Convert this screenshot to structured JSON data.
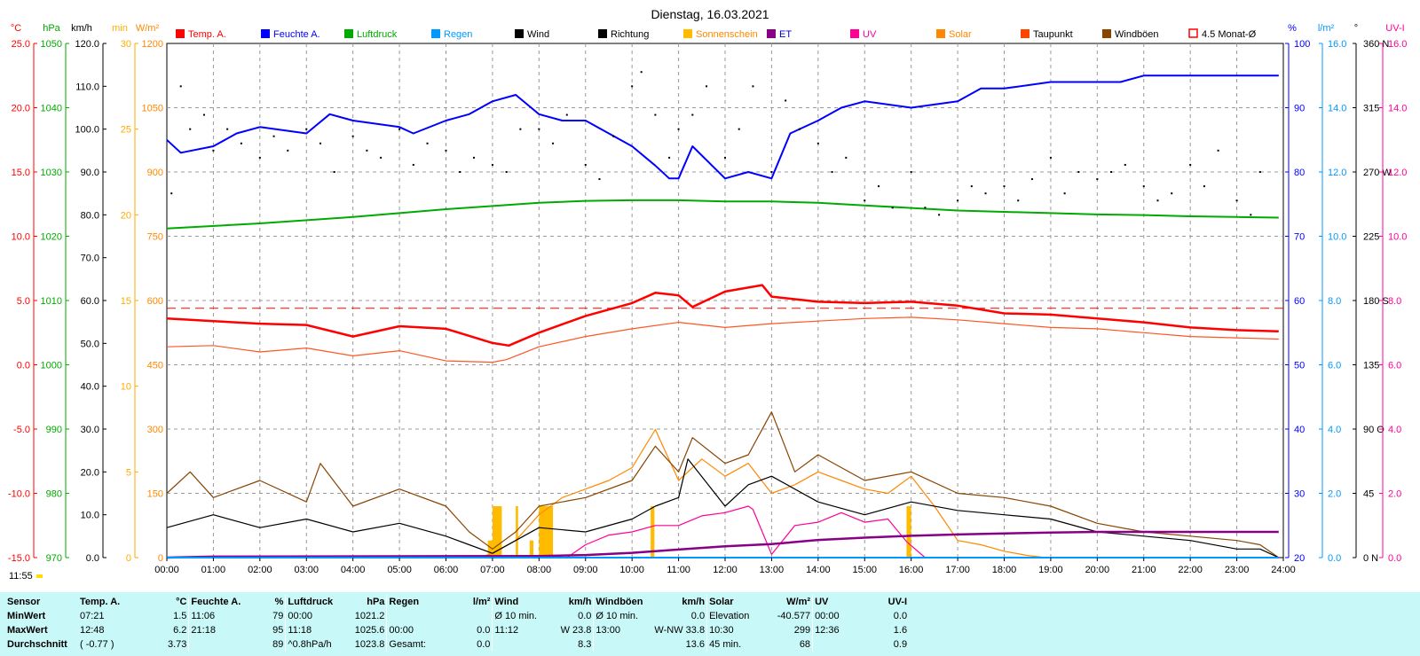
{
  "title": "Dienstag, 16.03.2021",
  "legend": [
    {
      "label": "Temp. A.",
      "color": "#ff0000"
    },
    {
      "label": "Feuchte A.",
      "color": "#0000ff"
    },
    {
      "label": "Luftdruck",
      "color": "#00aa00"
    },
    {
      "label": "Regen",
      "color": "#0099ff"
    },
    {
      "label": "Wind",
      "color": "#000000"
    },
    {
      "label": "Richtung",
      "color": "#000000"
    },
    {
      "label": "Sonnenschein",
      "color": "#ffbb00"
    },
    {
      "label": "ET",
      "color": "#880088"
    },
    {
      "label": "UV",
      "color": "#ff0099"
    },
    {
      "label": "Solar",
      "color": "#ff8800"
    },
    {
      "label": "Taupunkt",
      "color": "#ff4400"
    },
    {
      "label": "Windböen",
      "color": "#884400"
    },
    {
      "label": "4.5 Monat-Ø",
      "color": "#ff0000"
    }
  ],
  "axes_left": [
    {
      "unit": "°C",
      "color": "#ff0000",
      "ticks": [
        "25.0",
        "20.0",
        "15.0",
        "10.0",
        "5.0",
        "0.0",
        "-5.0",
        "-10.0",
        "-15.0"
      ]
    },
    {
      "unit": "hPa",
      "color": "#00aa00",
      "ticks": [
        "1050",
        "1040",
        "1030",
        "1020",
        "1010",
        "1000",
        "990",
        "980",
        "970"
      ]
    },
    {
      "unit": "km/h",
      "color": "#000000",
      "ticks": [
        "120.0",
        "110.0",
        "100.0",
        "90.0",
        "80.0",
        "70.0",
        "60.0",
        "50.0",
        "40.0",
        "30.0",
        "20.0",
        "10.0",
        "0.0"
      ]
    },
    {
      "unit": "min",
      "color": "#ffaa00",
      "ticks": [
        "30",
        "25",
        "20",
        "15",
        "10",
        "5",
        "0"
      ]
    },
    {
      "unit": "W/m²",
      "color": "#ff8800",
      "ticks": [
        "1200",
        "1050",
        "900",
        "750",
        "600",
        "450",
        "300",
        "150",
        "0"
      ]
    }
  ],
  "axes_right": [
    {
      "unit": "%",
      "color": "#0000ff",
      "ticks": [
        "100",
        "90",
        "80",
        "70",
        "60",
        "50",
        "40",
        "30",
        "20"
      ]
    },
    {
      "unit": "l/m²",
      "color": "#0099ff",
      "ticks": [
        "16.0",
        "14.0",
        "12.0",
        "10.0",
        "8.0",
        "6.0",
        "4.0",
        "2.0",
        "0.0"
      ]
    },
    {
      "unit": "°",
      "color": "#000000",
      "ticks": [
        "360 N",
        "315",
        "270 W",
        "225",
        "180 S",
        "135",
        "90 O",
        "45",
        "0 N"
      ]
    },
    {
      "unit": "UV-I",
      "color": "#ff0099",
      "ticks": [
        "16.0",
        "14.0",
        "12.0",
        "10.0",
        "8.0",
        "6.0",
        "4.0",
        "2.0",
        "0.0"
      ]
    }
  ],
  "chart_data": {
    "type": "line",
    "title": "Dienstag, 16.03.2021",
    "xlabel": "",
    "ylabel": "",
    "x_ticks": [
      "00:00",
      "01:00",
      "02:00",
      "03:00",
      "04:00",
      "05:00",
      "06:00",
      "07:00",
      "08:00",
      "09:00",
      "10:00",
      "11:00",
      "12:00",
      "13:00",
      "14:00",
      "15:00",
      "16:00",
      "17:00",
      "18:00",
      "19:00",
      "20:00",
      "21:00",
      "22:00",
      "23:00",
      "24:00"
    ],
    "grid": true,
    "legend_position": "top",
    "reference_line": {
      "name": "4.5 Monat-Ø",
      "value_C": 4.4
    },
    "series": [
      {
        "name": "Temp. A.",
        "unit": "°C",
        "x": [
          0,
          1,
          2,
          3,
          4,
          5,
          6,
          7,
          7.35,
          8,
          9,
          10,
          10.5,
          11,
          11.3,
          12,
          12.8,
          13,
          14,
          15,
          16,
          17,
          18,
          19,
          20,
          21,
          22,
          23,
          23.9
        ],
        "values": [
          3.6,
          3.4,
          3.2,
          3.1,
          2.2,
          3.0,
          2.8,
          1.7,
          1.5,
          2.5,
          3.8,
          4.8,
          5.6,
          5.4,
          4.5,
          5.7,
          6.2,
          5.3,
          4.9,
          4.8,
          4.9,
          4.6,
          4.0,
          3.9,
          3.6,
          3.3,
          2.9,
          2.7,
          2.6
        ]
      },
      {
        "name": "Taupunkt",
        "unit": "°C",
        "x": [
          0,
          1,
          2,
          3,
          4,
          5,
          6,
          7,
          7.3,
          8,
          9,
          10,
          11,
          12,
          13,
          14,
          15,
          16,
          17,
          18,
          19,
          20,
          21,
          22,
          23,
          23.9
        ],
        "values": [
          1.4,
          1.5,
          1.0,
          1.3,
          0.7,
          1.1,
          0.3,
          0.2,
          0.4,
          1.4,
          2.2,
          2.8,
          3.3,
          2.9,
          3.2,
          3.4,
          3.6,
          3.7,
          3.5,
          3.2,
          2.9,
          2.8,
          2.5,
          2.2,
          2.1,
          2.0
        ]
      },
      {
        "name": "Feuchte A.",
        "unit": "%",
        "x": [
          0,
          0.3,
          1,
          1.5,
          2,
          3,
          3.5,
          4,
          5,
          5.3,
          6,
          6.5,
          7,
          7.5,
          8,
          8.5,
          9,
          9.5,
          10,
          10.5,
          10.8,
          11,
          11.3,
          12,
          12.5,
          13,
          13.4,
          14,
          14.5,
          15,
          16,
          17,
          17.5,
          18,
          19,
          20,
          20.5,
          21,
          21.5,
          22,
          23,
          23.9
        ],
        "values": [
          85,
          83,
          84,
          86,
          87,
          86,
          89,
          88,
          87,
          86,
          88,
          89,
          91,
          92,
          89,
          88,
          88,
          86,
          84,
          81,
          79,
          79,
          84,
          79,
          80,
          79,
          86,
          88,
          90,
          91,
          90,
          91,
          93,
          93,
          94,
          94,
          94,
          95,
          95,
          95,
          95,
          95
        ]
      },
      {
        "name": "Luftdruck",
        "unit": "hPa",
        "x": [
          0,
          2,
          4,
          6,
          8,
          9,
          10,
          11,
          12,
          13,
          14,
          15,
          16,
          17,
          18,
          19,
          20,
          21,
          22,
          23,
          23.9
        ],
        "values": [
          1021.2,
          1022.0,
          1023.0,
          1024.2,
          1025.2,
          1025.5,
          1025.6,
          1025.6,
          1025.4,
          1025.4,
          1025.2,
          1024.8,
          1024.4,
          1024.0,
          1023.8,
          1023.6,
          1023.4,
          1023.3,
          1023.1,
          1023.0,
          1022.9
        ]
      },
      {
        "name": "Wind",
        "unit": "km/h",
        "x": [
          0,
          1,
          2,
          3,
          4,
          5,
          6,
          6.5,
          7,
          7.5,
          8,
          9,
          10,
          10.5,
          11,
          11.2,
          12,
          12.5,
          13,
          14,
          15,
          16,
          17,
          18,
          19,
          20,
          21,
          22,
          23,
          23.5,
          23.9
        ],
        "values": [
          7,
          10,
          7,
          9,
          6,
          8,
          5,
          3,
          1,
          4,
          7,
          6,
          9,
          12,
          14,
          23,
          12,
          17,
          19,
          13,
          10,
          13,
          11,
          10,
          9,
          6,
          5,
          4,
          2,
          2,
          0
        ]
      },
      {
        "name": "Windböen",
        "unit": "km/h",
        "x": [
          0,
          0.5,
          1,
          2,
          3,
          3.3,
          4,
          5,
          6,
          6.5,
          7,
          7.5,
          8,
          9,
          10,
          10.5,
          11,
          11.3,
          12,
          12.5,
          13,
          13.5,
          14,
          15,
          16,
          17,
          18,
          19,
          20,
          21,
          22,
          23,
          23.5,
          23.9
        ],
        "values": [
          15,
          20,
          14,
          18,
          13,
          22,
          12,
          16,
          12,
          6,
          2,
          6,
          12,
          14,
          18,
          26,
          20,
          28,
          22,
          24,
          34,
          20,
          24,
          18,
          20,
          15,
          14,
          12,
          8,
          6,
          5,
          4,
          3,
          0
        ]
      },
      {
        "name": "Solar",
        "unit": "W/m²",
        "x": [
          6.7,
          7,
          7.5,
          8,
          8.5,
          9,
          9.5,
          10,
          10.5,
          11,
          11.5,
          12,
          12.5,
          13,
          13.5,
          14,
          14.5,
          15,
          15.5,
          16,
          16.5,
          17,
          17.5,
          18,
          18.5,
          18.9
        ],
        "values": [
          0,
          10,
          40,
          100,
          140,
          160,
          180,
          210,
          299,
          180,
          230,
          190,
          220,
          150,
          170,
          200,
          180,
          160,
          150,
          190,
          120,
          40,
          30,
          15,
          5,
          0
        ]
      },
      {
        "name": "UV",
        "unit": "UV-I",
        "x": [
          8.6,
          9,
          9.5,
          10,
          10.5,
          11,
          11.5,
          12,
          12.5,
          12.6,
          13,
          13.5,
          14,
          14.5,
          15,
          15.5,
          15.9,
          16.3
        ],
        "values": [
          0,
          0.4,
          0.7,
          0.8,
          1.0,
          1.0,
          1.3,
          1.4,
          1.6,
          1.5,
          0.1,
          1.0,
          1.1,
          1.4,
          1.1,
          1.2,
          0.5,
          0
        ]
      },
      {
        "name": "ET",
        "unit": "l/m²",
        "x": [
          0,
          1,
          8,
          9,
          10,
          11,
          12,
          13,
          14,
          15,
          16,
          17,
          18,
          19,
          20,
          21,
          22,
          23,
          23.9
        ],
        "values": [
          0,
          0.03,
          0.05,
          0.08,
          0.15,
          0.25,
          0.35,
          0.42,
          0.55,
          0.62,
          0.68,
          0.72,
          0.75,
          0.78,
          0.8,
          0.8,
          0.8,
          0.8,
          0.8
        ]
      },
      {
        "name": "Regen",
        "unit": "l/m²",
        "x": [
          0,
          23.9
        ],
        "values": [
          0.0,
          0.0
        ]
      },
      {
        "name": "Sonnenschein",
        "unit": "min",
        "type": "bar",
        "bars": [
          {
            "x": 6.9,
            "w": 0.1,
            "v": 1
          },
          {
            "x": 7.0,
            "w": 0.2,
            "v": 3
          },
          {
            "x": 7.5,
            "w": 0.05,
            "v": 3
          },
          {
            "x": 7.8,
            "w": 0.08,
            "v": 1
          },
          {
            "x": 8.0,
            "w": 0.3,
            "v": 3
          },
          {
            "x": 10.4,
            "w": 0.08,
            "v": 3
          },
          {
            "x": 15.9,
            "w": 0.1,
            "v": 3
          }
        ]
      },
      {
        "name": "Richtung",
        "unit": "°",
        "type": "scatter",
        "x": [
          0.1,
          0.3,
          0.5,
          0.8,
          1.0,
          1.3,
          1.6,
          2.0,
          2.3,
          2.6,
          3.0,
          3.3,
          3.6,
          4.0,
          4.3,
          4.6,
          5.0,
          5.3,
          5.6,
          6.0,
          6.3,
          6.6,
          7.0,
          7.3,
          7.6,
          8.0,
          8.3,
          8.6,
          9.0,
          9.3,
          9.6,
          10.0,
          10.2,
          10.5,
          10.8,
          11.0,
          11.3,
          11.6,
          12.0,
          12.3,
          12.6,
          13.0,
          13.3,
          13.6,
          14.0,
          14.3,
          14.6,
          15.0,
          15.3,
          15.6,
          16.0,
          16.3,
          16.6,
          17.0,
          17.3,
          17.6,
          18.0,
          18.3,
          18.6,
          19.0,
          19.3,
          19.6,
          20.0,
          20.3,
          20.6,
          21.0,
          21.3,
          21.6,
          22.0,
          22.3,
          22.6,
          23.0,
          23.3,
          23.5
        ],
        "values": [
          255,
          330,
          300,
          310,
          285,
          300,
          290,
          280,
          295,
          285,
          300,
          290,
          270,
          295,
          285,
          280,
          300,
          275,
          290,
          285,
          270,
          280,
          275,
          270,
          300,
          300,
          290,
          310,
          275,
          265,
          295,
          330,
          340,
          310,
          280,
          300,
          310,
          330,
          280,
          300,
          330,
          270,
          320,
          300,
          290,
          270,
          280,
          250,
          260,
          245,
          270,
          245,
          240,
          250,
          260,
          255,
          260,
          250,
          265,
          280,
          255,
          270,
          265,
          270,
          275,
          260,
          250,
          255,
          275,
          260,
          285,
          250,
          240,
          270
        ]
      }
    ]
  },
  "footer": {
    "time": "11:55"
  },
  "stats": {
    "headers": [
      {
        "name": "Sensor"
      },
      {
        "name": "Temp. A.",
        "unit": "°C"
      },
      {
        "name": "Feuchte A.",
        "unit": "%"
      },
      {
        "name": "Luftdruck",
        "unit": "hPa"
      },
      {
        "name": "Regen",
        "unit": "l/m²"
      },
      {
        "name": "Wind",
        "unit": "km/h"
      },
      {
        "name": "Windböen",
        "unit": "km/h"
      },
      {
        "name": "Solar",
        "unit": "W/m²"
      },
      {
        "name": "UV",
        "unit": "UV-I"
      }
    ],
    "rows": [
      {
        "label": "MinWert",
        "cells": [
          [
            "07:21",
            "1.5"
          ],
          [
            "11:06",
            "79"
          ],
          [
            "00:00",
            "1021.2"
          ],
          [
            "",
            ""
          ],
          [
            "Ø 10 min.",
            "0.0"
          ],
          [
            "Ø 10 min.",
            "0.0"
          ],
          [
            "Elevation",
            "-40.577"
          ],
          [
            "00:00",
            "0.0"
          ]
        ]
      },
      {
        "label": "MaxWert",
        "cells": [
          [
            "12:48",
            "6.2"
          ],
          [
            "21:18",
            "95"
          ],
          [
            "11:18",
            "1025.6"
          ],
          [
            "00:00",
            "0.0"
          ],
          [
            "11:12",
            "W 23.8"
          ],
          [
            "13:00",
            "W-NW 33.8"
          ],
          [
            "10:30",
            "299"
          ],
          [
            "12:36",
            "1.6"
          ]
        ]
      },
      {
        "label": "Durchschnitt",
        "cells": [
          [
            "( -0.77 )",
            "3.73"
          ],
          [
            "",
            "89"
          ],
          [
            "^0.8hPa/h",
            "1023.8"
          ],
          [
            "Gesamt:",
            "0.0"
          ],
          [
            "",
            "8.3"
          ],
          [
            "",
            "13.6"
          ],
          [
            "45 min.",
            "68"
          ],
          [
            "",
            "0.9"
          ]
        ]
      }
    ]
  }
}
